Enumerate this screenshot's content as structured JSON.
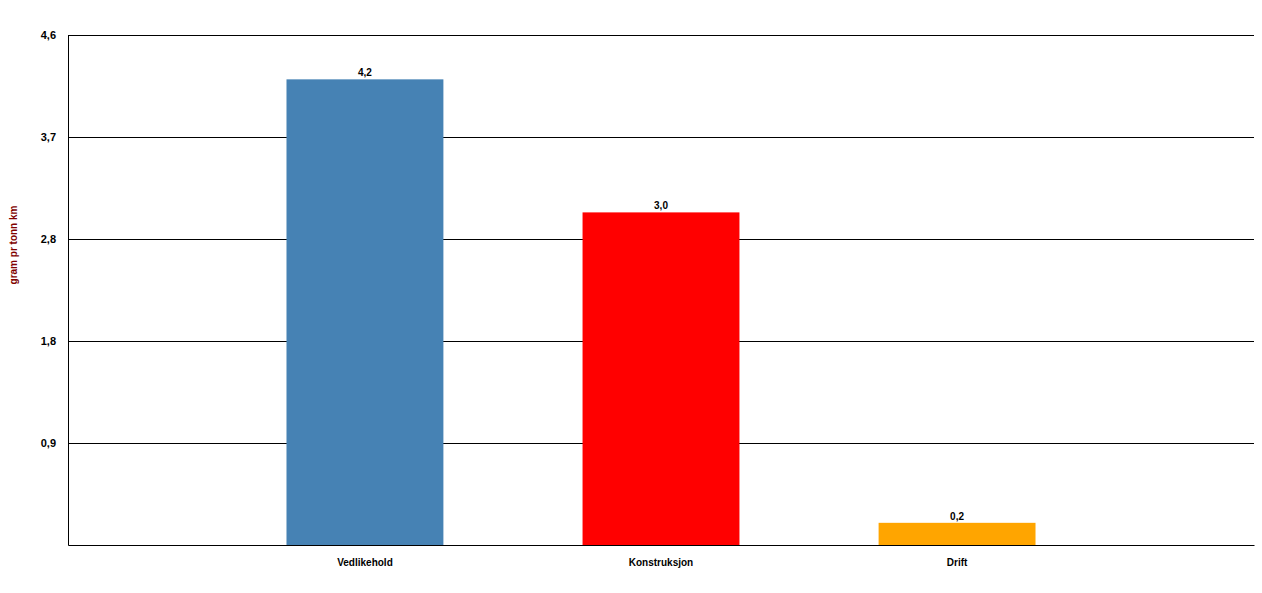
{
  "chart_data": {
    "type": "bar",
    "y_label": "gram pr tonn km",
    "categories": [
      "Vedlikehold",
      "Konstruksjon",
      "Drift"
    ],
    "values": [
      4.2,
      3.0,
      0.2
    ],
    "value_labels": [
      "4,2",
      "3,0",
      "0,2"
    ],
    "colors": [
      "#4682b4",
      "#ff0000",
      "#ffa500"
    ],
    "ylim": [
      0,
      4.6
    ],
    "yticks": [
      {
        "value": 0.92,
        "label": "0,9"
      },
      {
        "value": 1.84,
        "label": "1,8"
      },
      {
        "value": 2.76,
        "label": "2,8"
      },
      {
        "value": 3.68,
        "label": "3,7"
      },
      {
        "value": 4.6,
        "label": "4,6"
      }
    ],
    "grid": true,
    "data_labels": true
  }
}
